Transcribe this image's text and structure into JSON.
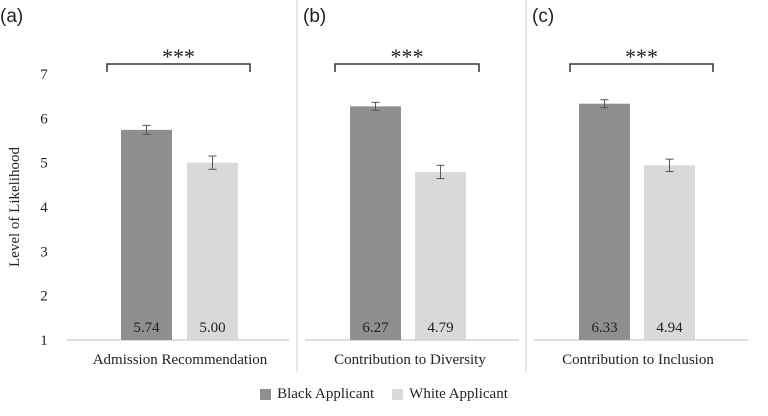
{
  "chart_data": {
    "type": "bar",
    "ylabel": "Level of Likelihood",
    "ylim": [
      1,
      7
    ],
    "yticks": [
      "1",
      "2",
      "3",
      "4",
      "5",
      "6",
      "7"
    ],
    "grid": false,
    "legend_position": "bottom",
    "colors": {
      "Black Applicant": "#8f8f8f",
      "White Applicant": "#d9d9d9"
    },
    "panels": [
      {
        "panel_label": "(a)",
        "category": "Admission Recommendation",
        "significance": "***",
        "series": [
          {
            "name": "Black Applicant",
            "value": 5.74,
            "value_label": "5.74",
            "error": 0.1
          },
          {
            "name": "White Applicant",
            "value": 5.0,
            "value_label": "5.00",
            "error": 0.15
          }
        ]
      },
      {
        "panel_label": "(b)",
        "category": "Contribution to Diversity",
        "significance": "***",
        "series": [
          {
            "name": "Black Applicant",
            "value": 6.27,
            "value_label": "6.27",
            "error": 0.09
          },
          {
            "name": "White Applicant",
            "value": 4.79,
            "value_label": "4.79",
            "error": 0.15
          }
        ]
      },
      {
        "panel_label": "(c)",
        "category": "Contribution to Inclusion",
        "significance": "***",
        "series": [
          {
            "name": "Black Applicant",
            "value": 6.33,
            "value_label": "6.33",
            "error": 0.09
          },
          {
            "name": "White Applicant",
            "value": 4.94,
            "value_label": "4.94",
            "error": 0.14
          }
        ]
      }
    ]
  },
  "legend": [
    {
      "label": "Black Applicant",
      "color": "#8f8f8f"
    },
    {
      "label": "White Applicant",
      "color": "#d9d9d9"
    }
  ]
}
